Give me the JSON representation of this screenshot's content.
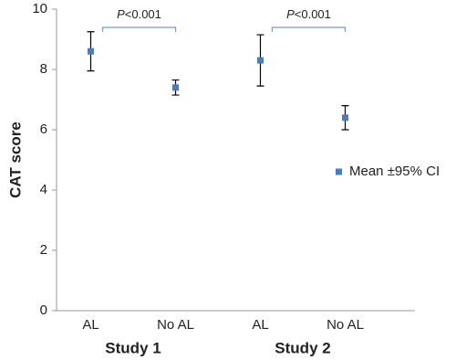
{
  "chart_data": {
    "type": "errorbar",
    "y_label": "CAT score",
    "categories": [
      "AL",
      "No AL",
      "AL",
      "No AL"
    ],
    "groups": [
      {
        "name": "Study 1",
        "annotation": {
          "italic": "P",
          "text": "<0.001"
        }
      },
      {
        "name": "Study 2",
        "annotation": {
          "italic": "P",
          "text": "<0.001"
        }
      }
    ],
    "series": [
      {
        "name": "Mean ±95% CI",
        "color": "#4a7ebb",
        "values": [
          8.6,
          7.4,
          8.3,
          6.4
        ],
        "errors": [
          0.65,
          0.25,
          0.85,
          0.4
        ]
      }
    ],
    "ylim": [
      0,
      10
    ],
    "yticks": [
      0,
      2,
      4,
      6,
      8,
      10
    ],
    "grid": false,
    "legend": "right"
  }
}
